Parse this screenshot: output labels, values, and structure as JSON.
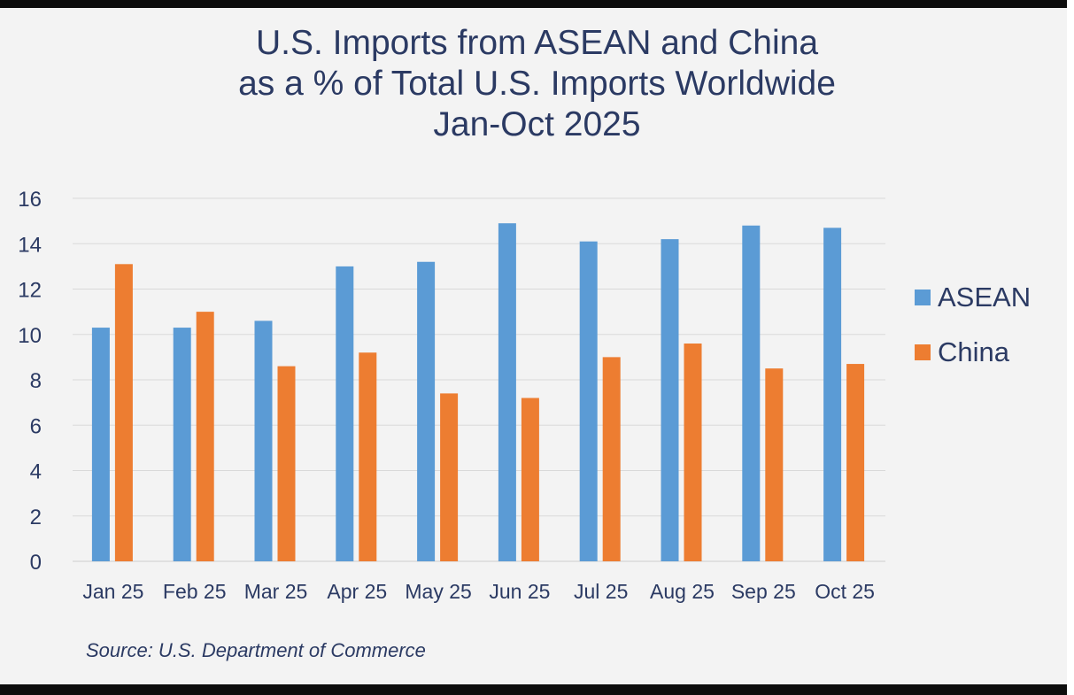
{
  "title": {
    "line1": "U.S. Imports from ASEAN and China",
    "line2": "as a % of Total U.S. Imports Worldwide",
    "line3": "Jan-Oct 2025"
  },
  "source": "Source: U.S. Department of Commerce",
  "colors": {
    "asean": "#5b9bd5",
    "china": "#ed7d31",
    "grid": "#d9d9d9",
    "text": "#2b3a63"
  },
  "chart_data": {
    "type": "bar",
    "title": "U.S. Imports from ASEAN and China as a % of Total U.S. Imports Worldwide Jan-Oct 2025",
    "xlabel": "",
    "ylabel": "",
    "ylim": [
      0,
      16
    ],
    "yticks": [
      0,
      2,
      4,
      6,
      8,
      10,
      12,
      14,
      16
    ],
    "grid": true,
    "legend_position": "right",
    "categories": [
      "Jan 25",
      "Feb 25",
      "Mar 25",
      "Apr 25",
      "May 25",
      "Jun 25",
      "Jul 25",
      "Aug 25",
      "Sep 25",
      "Oct 25"
    ],
    "series": [
      {
        "name": "ASEAN",
        "values": [
          10.3,
          10.3,
          10.6,
          13.0,
          13.2,
          14.9,
          14.1,
          14.2,
          14.8,
          14.7
        ]
      },
      {
        "name": "China",
        "values": [
          13.1,
          11.0,
          8.6,
          9.2,
          7.4,
          7.2,
          9.0,
          9.6,
          8.5,
          8.7
        ]
      }
    ],
    "source": "Source: U.S. Department of Commerce"
  }
}
